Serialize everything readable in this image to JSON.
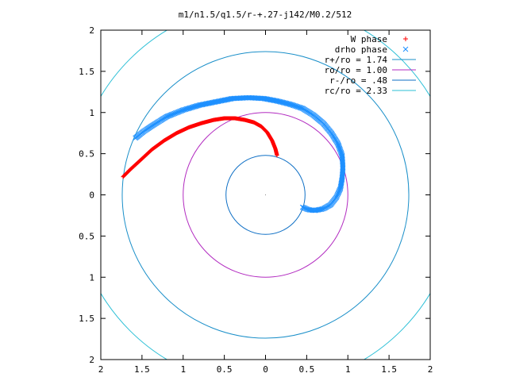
{
  "chart_data": {
    "type": "scatter",
    "title": "m1/n1.5/q1.5/r-+.27-j142/M0.2/512",
    "xlabel": "",
    "ylabel": "",
    "xlim": [
      -2,
      2
    ],
    "ylim": [
      -2,
      2
    ],
    "x_tick_values": [
      -2,
      -1.5,
      -1,
      -0.5,
      0,
      0.5,
      1,
      1.5,
      2
    ],
    "x_tick_labels": [
      "2",
      "1.5",
      "1",
      "0.5",
      "0",
      "0.5",
      "1",
      "1.5",
      "2"
    ],
    "y_tick_values": [
      2,
      1.5,
      1,
      0.5,
      0,
      -0.5,
      -1,
      -1.5,
      -2
    ],
    "y_tick_labels": [
      "2",
      "1.5",
      "1",
      "0.5",
      "0",
      "0.5",
      "1",
      "1.5",
      "2"
    ],
    "grid": false,
    "legend_position": "top-right",
    "center_point": [
      0,
      0
    ],
    "series": [
      {
        "name": "W phase",
        "kind": "points",
        "marker": "plus",
        "color": "#ff0000",
        "points": [
          [
            0.14,
            0.48
          ],
          [
            0.12,
            0.56
          ],
          [
            0.08,
            0.66
          ],
          [
            0.02,
            0.76
          ],
          [
            -0.05,
            0.83
          ],
          [
            -0.14,
            0.88
          ],
          [
            -0.25,
            0.91
          ],
          [
            -0.37,
            0.93
          ],
          [
            -0.5,
            0.93
          ],
          [
            -0.63,
            0.91
          ],
          [
            -0.78,
            0.87
          ],
          [
            -0.93,
            0.82
          ],
          [
            -1.08,
            0.75
          ],
          [
            -1.23,
            0.66
          ],
          [
            -1.38,
            0.55
          ],
          [
            -1.52,
            0.42
          ],
          [
            -1.64,
            0.31
          ],
          [
            -1.73,
            0.22
          ]
        ]
      },
      {
        "name": "drho phase",
        "kind": "points",
        "marker": "cross",
        "color": "#1e90ff",
        "points": [
          [
            0.45,
            -0.15
          ],
          [
            0.52,
            -0.18
          ],
          [
            0.6,
            -0.19
          ],
          [
            0.7,
            -0.17
          ],
          [
            0.79,
            -0.12
          ],
          [
            0.86,
            -0.03
          ],
          [
            0.91,
            0.08
          ],
          [
            0.93,
            0.2
          ],
          [
            0.94,
            0.33
          ],
          [
            0.93,
            0.48
          ],
          [
            0.88,
            0.62
          ],
          [
            0.8,
            0.75
          ],
          [
            0.7,
            0.87
          ],
          [
            0.58,
            0.97
          ],
          [
            0.45,
            1.05
          ],
          [
            0.3,
            1.1
          ],
          [
            0.14,
            1.14
          ],
          [
            -0.02,
            1.17
          ],
          [
            -0.2,
            1.18
          ],
          [
            -0.4,
            1.17
          ],
          [
            -0.6,
            1.13
          ],
          [
            -0.8,
            1.09
          ],
          [
            -1.0,
            1.03
          ],
          [
            -1.2,
            0.95
          ],
          [
            -1.36,
            0.85
          ],
          [
            -1.48,
            0.77
          ],
          [
            -1.58,
            0.69
          ]
        ]
      },
      {
        "name": "r+/ro = 1.74",
        "kind": "circle",
        "radius": 1.74,
        "color": "#1a8fc9"
      },
      {
        "name": "ro/ro = 1.00",
        "kind": "circle",
        "radius": 1.0,
        "color": "#b22bc0"
      },
      {
        "name": "r-/ro = .48",
        "kind": "circle",
        "radius": 0.48,
        "color": "#0e6fc5"
      },
      {
        "name": "rc/ro = 2.33",
        "kind": "circle",
        "radius": 2.33,
        "color": "#2bbfd6"
      }
    ]
  }
}
